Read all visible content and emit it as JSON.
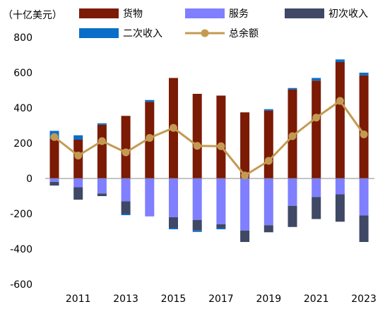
{
  "chart_data": {
    "type": "bar",
    "unit_label": "（十亿美元）",
    "title": "",
    "xlabel": "",
    "ylabel": "",
    "categories": [
      "2010",
      "2011",
      "2012",
      "2013",
      "2014",
      "2015",
      "2016",
      "2017",
      "2018",
      "2019",
      "2020",
      "2021",
      "2022",
      "2023"
    ],
    "x_tick_labels": [
      "2011",
      "2013",
      "2015",
      "2017",
      "2019",
      "2021",
      "2023"
    ],
    "y_ticks": [
      800,
      600,
      400,
      200,
      0,
      -200,
      -400,
      -600
    ],
    "ylim": [
      -600,
      800
    ],
    "stacked": true,
    "legend_position": "top",
    "series": [
      {
        "name": "货物",
        "color": "#7B1A05",
        "values": [
          225,
          220,
          305,
          355,
          435,
          570,
          480,
          470,
          375,
          385,
          505,
          555,
          660,
          585
        ]
      },
      {
        "name": "服务",
        "color": "#7F7FFF",
        "values": [
          -20,
          -50,
          -85,
          -130,
          -215,
          -220,
          -235,
          -260,
          -295,
          -265,
          -155,
          -105,
          -90,
          -210
        ]
      },
      {
        "name": "初次收入",
        "color": "#3F4865",
        "values": [
          -20,
          -70,
          -15,
          -70,
          0,
          -60,
          -60,
          -20,
          -65,
          -40,
          -120,
          -125,
          -155,
          -150
        ]
      },
      {
        "name": "二次收入",
        "color": "#0A6EC8",
        "values": [
          45,
          25,
          8,
          -8,
          10,
          -8,
          -8,
          -8,
          0,
          8,
          8,
          15,
          15,
          15
        ]
      }
    ],
    "line_series": {
      "name": "总余额",
      "color": "#C49A52",
      "values": [
        235,
        130,
        212,
        148,
        230,
        287,
        185,
        183,
        17,
        100,
        240,
        345,
        440,
        250
      ]
    }
  }
}
